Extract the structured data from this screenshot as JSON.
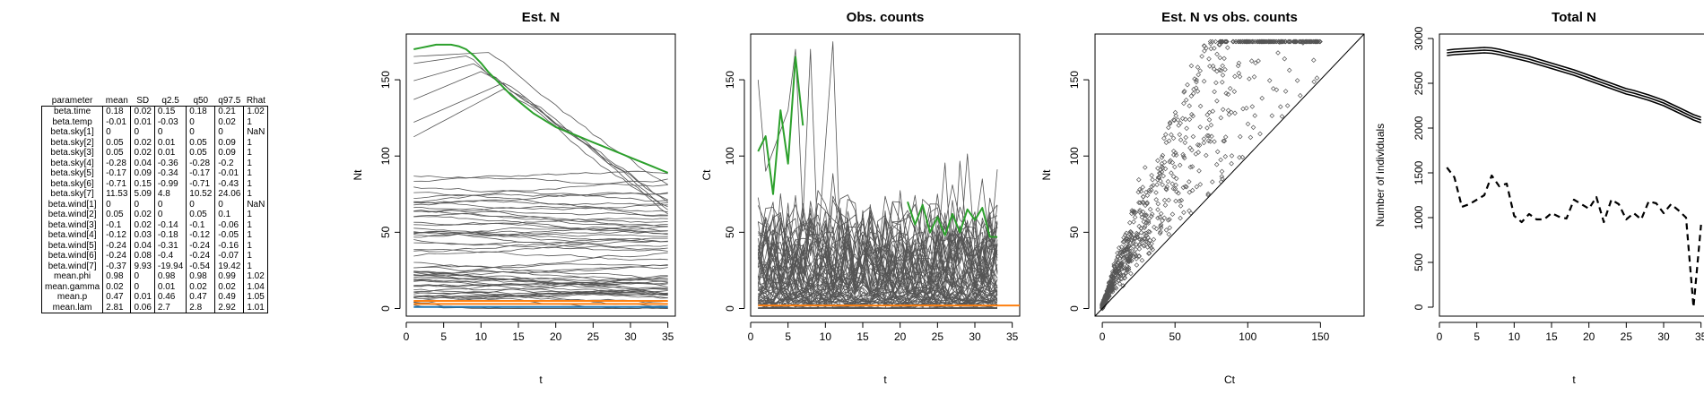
{
  "table": {
    "columns": [
      "parameter",
      "mean",
      "SD",
      "q2.5",
      "q50",
      "q97.5",
      "Rhat"
    ],
    "rows": [
      [
        "beta.time",
        "0.18",
        "0.02",
        "0.15",
        "0.18",
        "0.21",
        "1.02"
      ],
      [
        "beta.temp",
        "-0.01",
        "0.01",
        "-0.03",
        "0",
        "0.02",
        "1"
      ],
      [
        "beta.sky[1]",
        "0",
        "0",
        "0",
        "0",
        "0",
        "NaN"
      ],
      [
        "beta.sky[2]",
        "0.05",
        "0.02",
        "0.01",
        "0.05",
        "0.09",
        "1"
      ],
      [
        "beta.sky[3]",
        "0.05",
        "0.02",
        "0.01",
        "0.05",
        "0.09",
        "1"
      ],
      [
        "beta.sky[4]",
        "-0.28",
        "0.04",
        "-0.36",
        "-0.28",
        "-0.2",
        "1"
      ],
      [
        "beta.sky[5]",
        "-0.17",
        "0.09",
        "-0.34",
        "-0.17",
        "-0.01",
        "1"
      ],
      [
        "beta.sky[6]",
        "-0.71",
        "0.15",
        "-0.99",
        "-0.71",
        "-0.43",
        "1"
      ],
      [
        "beta.sky[7]",
        "11.53",
        "5.09",
        "4.8",
        "10.52",
        "24.06",
        "1"
      ],
      [
        "beta.wind[1]",
        "0",
        "0",
        "0",
        "0",
        "0",
        "NaN"
      ],
      [
        "beta.wind[2]",
        "0.05",
        "0.02",
        "0",
        "0.05",
        "0.1",
        "1"
      ],
      [
        "beta.wind[3]",
        "-0.1",
        "0.02",
        "-0.14",
        "-0.1",
        "-0.06",
        "1"
      ],
      [
        "beta.wind[4]",
        "-0.12",
        "0.03",
        "-0.18",
        "-0.12",
        "-0.05",
        "1"
      ],
      [
        "beta.wind[5]",
        "-0.24",
        "0.04",
        "-0.31",
        "-0.24",
        "-0.16",
        "1"
      ],
      [
        "beta.wind[6]",
        "-0.24",
        "0.08",
        "-0.4",
        "-0.24",
        "-0.07",
        "1"
      ],
      [
        "beta.wind[7]",
        "-0.37",
        "9.93",
        "-19.94",
        "-0.54",
        "19.42",
        "1"
      ],
      [
        "mean.phi",
        "0.98",
        "0",
        "0.98",
        "0.98",
        "0.99",
        "1.02"
      ],
      [
        "mean.gamma",
        "0.02",
        "0",
        "0.01",
        "0.02",
        "0.02",
        "1.04"
      ],
      [
        "mean.p",
        "0.47",
        "0.01",
        "0.46",
        "0.47",
        "0.49",
        "1.05"
      ],
      [
        "mean.lam",
        "2.81",
        "0.06",
        "2.7",
        "2.8",
        "2.92",
        "1.01"
      ]
    ]
  },
  "chart_data": [
    {
      "type": "line",
      "title": "Est. N",
      "xlabel": "t",
      "ylabel": "Nt",
      "xlim": [
        0,
        36
      ],
      "ylim": [
        -5,
        180
      ],
      "xticks": [
        0,
        5,
        10,
        15,
        20,
        25,
        30,
        35
      ],
      "yticks": [
        0,
        50,
        100,
        150
      ],
      "colors": {
        "sites": "#555555",
        "highlight": "#2ca02c",
        "low": "#ff7f0e",
        "low2": "#1f77b4"
      },
      "highlight_series": {
        "x": [
          1,
          2,
          3,
          4,
          5,
          6,
          7,
          8,
          9,
          10,
          11,
          12,
          13,
          14,
          15,
          16,
          17,
          18,
          19,
          20,
          21,
          22,
          23,
          24,
          25,
          26,
          27,
          28,
          29,
          30,
          31,
          32,
          33,
          34,
          35
        ],
        "y": [
          170,
          171,
          172,
          173,
          173,
          173,
          172,
          170,
          166,
          161,
          155,
          150,
          145,
          140,
          136,
          132,
          128,
          125,
          122,
          119,
          117,
          115,
          113,
          111,
          109,
          107,
          105,
          103,
          101,
          99,
          97,
          95,
          93,
          91,
          89
        ]
      }
    },
    {
      "type": "line",
      "title": "Obs. counts",
      "xlabel": "t",
      "ylabel": "Ct",
      "xlim": [
        0,
        36
      ],
      "ylim": [
        -5,
        180
      ],
      "xticks": [
        0,
        5,
        10,
        15,
        20,
        25,
        30,
        35
      ],
      "yticks": [
        0,
        50,
        100,
        150
      ],
      "colors": {
        "sites": "#555555",
        "highlight": "#2ca02c",
        "low": "#ff7f0e"
      },
      "highlight_series": {
        "x": [
          1,
          2,
          3,
          4,
          5,
          6,
          7,
          8,
          9,
          10,
          11,
          12,
          13,
          14,
          15,
          16,
          17,
          18,
          19,
          20,
          21,
          22,
          23,
          24,
          25,
          26,
          27,
          28,
          29,
          30,
          31,
          32,
          33
        ],
        "y": [
          103,
          113,
          75,
          130,
          95,
          165,
          120,
          null,
          null,
          null,
          null,
          null,
          null,
          null,
          null,
          null,
          null,
          null,
          null,
          null,
          70,
          55,
          68,
          50,
          60,
          48,
          62,
          50,
          65,
          58,
          66,
          47,
          47
        ]
      }
    },
    {
      "type": "scatter",
      "title": "Est. N vs obs. counts",
      "xlabel": "Ct",
      "ylabel": "Nt",
      "xlim": [
        -5,
        180
      ],
      "ylim": [
        -5,
        180
      ],
      "xticks": [
        0,
        50,
        100,
        150
      ],
      "yticks": [
        0,
        50,
        100,
        150
      ],
      "reference_line": "y = x"
    },
    {
      "type": "line",
      "title": "Total N",
      "xlabel": "t",
      "ylabel": "Number of individuals",
      "xlim": [
        0,
        36
      ],
      "ylim": [
        -100,
        3050
      ],
      "xticks": [
        0,
        5,
        10,
        15,
        20,
        25,
        30,
        35
      ],
      "yticks": [
        0,
        500,
        1000,
        1500,
        2000,
        2500,
        3000
      ],
      "x": [
        1,
        2,
        3,
        4,
        5,
        6,
        7,
        8,
        9,
        10,
        11,
        12,
        13,
        14,
        15,
        16,
        17,
        18,
        19,
        20,
        21,
        22,
        23,
        24,
        25,
        26,
        27,
        28,
        29,
        30,
        31,
        32,
        33,
        34,
        35
      ],
      "series": [
        {
          "style": "solid",
          "values": [
            2870,
            2880,
            2885,
            2890,
            2895,
            2900,
            2895,
            2880,
            2860,
            2840,
            2820,
            2800,
            2775,
            2750,
            2725,
            2700,
            2675,
            2650,
            2620,
            2590,
            2560,
            2530,
            2500,
            2470,
            2440,
            2420,
            2395,
            2370,
            2340,
            2310,
            2270,
            2230,
            2190,
            2150,
            2120
          ]
        },
        {
          "style": "solid",
          "values": [
            2840,
            2850,
            2855,
            2860,
            2865,
            2870,
            2865,
            2850,
            2830,
            2810,
            2790,
            2770,
            2745,
            2720,
            2695,
            2670,
            2645,
            2620,
            2590,
            2560,
            2530,
            2500,
            2470,
            2440,
            2410,
            2390,
            2365,
            2340,
            2310,
            2280,
            2240,
            2200,
            2160,
            2120,
            2090
          ]
        },
        {
          "style": "solid",
          "values": [
            2810,
            2820,
            2825,
            2830,
            2835,
            2840,
            2835,
            2820,
            2800,
            2780,
            2760,
            2740,
            2715,
            2690,
            2665,
            2640,
            2615,
            2590,
            2560,
            2530,
            2500,
            2470,
            2440,
            2410,
            2380,
            2360,
            2335,
            2310,
            2280,
            2250,
            2210,
            2170,
            2130,
            2090,
            2060
          ]
        },
        {
          "style": "dashed",
          "values": [
            1560,
            1450,
            1120,
            1150,
            1200,
            1250,
            1470,
            1350,
            1380,
            1020,
            950,
            1040,
            980,
            980,
            1050,
            1010,
            990,
            1200,
            1150,
            1100,
            1230,
            950,
            1200,
            1150,
            980,
            1050,
            980,
            1180,
            1160,
            1050,
            1150,
            1080,
            1000,
            0,
            920
          ]
        }
      ]
    }
  ]
}
